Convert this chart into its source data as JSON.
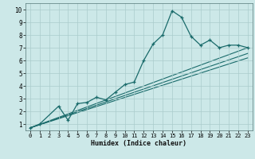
{
  "xlabel": "Humidex (Indice chaleur)",
  "bg_color": "#cce8e8",
  "grid_color": "#aacccc",
  "line_color": "#1a6b6b",
  "xlim": [
    -0.5,
    23.5
  ],
  "ylim": [
    0.5,
    10.5
  ],
  "xticks": [
    0,
    1,
    2,
    3,
    4,
    5,
    6,
    7,
    8,
    9,
    10,
    11,
    12,
    13,
    14,
    15,
    16,
    17,
    18,
    19,
    20,
    21,
    22,
    23
  ],
  "yticks": [
    1,
    2,
    3,
    4,
    5,
    6,
    7,
    8,
    9,
    10
  ],
  "series1_x": [
    0,
    1,
    3,
    4,
    5,
    6,
    7,
    8,
    9,
    10,
    11,
    12,
    13,
    14,
    15,
    16,
    17,
    18,
    19,
    20,
    21,
    22,
    23
  ],
  "series1_y": [
    0.7,
    1.0,
    2.4,
    1.3,
    2.6,
    2.7,
    3.1,
    2.9,
    3.5,
    4.1,
    4.3,
    6.0,
    7.3,
    8.0,
    9.9,
    9.4,
    7.9,
    7.2,
    7.6,
    7.0,
    7.2,
    7.2,
    7.0
  ],
  "series2_x": [
    0,
    23
  ],
  "series2_y": [
    0.7,
    7.0
  ],
  "series3_x": [
    0,
    23
  ],
  "series3_y": [
    0.7,
    6.55
  ],
  "series4_x": [
    0,
    23
  ],
  "series4_y": [
    0.7,
    6.2
  ]
}
